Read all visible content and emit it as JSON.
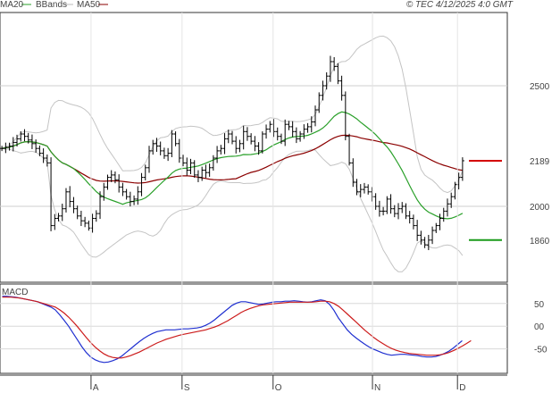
{
  "header": {
    "legend": [
      {
        "label": "MA20",
        "color": "#2aa02a"
      },
      {
        "label": "BBands",
        "color": "#bbbbbb"
      },
      {
        "label": "MA50",
        "color": "#8b0000"
      }
    ],
    "copyright": "© TEC 4/12/2025 4:0 GMT"
  },
  "chart_data": [
    {
      "type": "ohlc",
      "x_labels": [
        "A",
        "S",
        "O",
        "N",
        "D"
      ],
      "y_ticks": [
        2000,
        2500
      ],
      "ylim": [
        1700,
        2800
      ],
      "grid": true,
      "price_close": [
        2240,
        2245,
        2250,
        2265,
        2280,
        2300,
        2290,
        2275,
        2260,
        2240,
        2220,
        2200,
        2180,
        1920,
        1950,
        1960,
        1990,
        2060,
        2020,
        1990,
        1960,
        1940,
        1930,
        1910,
        1950,
        1970,
        2040,
        2080,
        2120,
        2130,
        2110,
        2080,
        2060,
        2040,
        2020,
        2030,
        2060,
        2120,
        2160,
        2230,
        2260,
        2250,
        2230,
        2210,
        2220,
        2300,
        2260,
        2200,
        2180,
        2150,
        2180,
        2130,
        2120,
        2150,
        2140,
        2160,
        2200,
        2230,
        2240,
        2280,
        2300,
        2270,
        2240,
        2260,
        2310,
        2290,
        2270,
        2250,
        2230,
        2300,
        2320,
        2340,
        2310,
        2290,
        2270,
        2340,
        2330,
        2310,
        2280,
        2300,
        2320,
        2330,
        2350,
        2400,
        2460,
        2500,
        2540,
        2600,
        2580,
        2520,
        2460,
        2290,
        2180,
        2100,
        2060,
        2070,
        2080,
        2060,
        2040,
        2000,
        1980,
        1980,
        2030,
        1990,
        1970,
        1990,
        2000,
        1960,
        1950,
        1920,
        1880,
        1860,
        1840,
        1860,
        1900,
        1920,
        1950,
        1980,
        2010,
        2040,
        2090,
        2120,
        2189
      ],
      "levels": [
        {
          "label": "2189",
          "value": 2189,
          "color": "#d40000"
        },
        {
          "label": "1860",
          "value": 1860,
          "color": "#1a9a1a"
        }
      ]
    },
    {
      "type": "line",
      "title": "MACD",
      "y_ticks": [
        "50",
        "00",
        "-50"
      ],
      "ylim": [
        -100,
        85
      ],
      "series": [
        {
          "color": "#1f2fd0",
          "values": [
            66,
            66,
            65,
            64,
            62,
            60,
            58,
            56,
            54,
            50,
            46,
            42,
            36,
            25,
            13,
            0,
            -15,
            -30,
            -45,
            -58,
            -68,
            -74,
            -78,
            -80,
            -79,
            -76,
            -72,
            -66,
            -58,
            -50,
            -42,
            -34,
            -27,
            -21,
            -16,
            -12,
            -10,
            -8,
            -8,
            -8,
            -7,
            -6,
            -6,
            -5,
            -4,
            -2,
            2,
            7,
            14,
            22,
            30,
            38,
            46,
            51,
            54,
            54,
            52,
            50,
            48,
            49,
            51,
            53,
            54,
            54,
            55,
            55,
            56,
            55,
            54,
            53,
            54,
            56,
            58,
            56,
            48,
            35,
            18,
            5,
            -8,
            -18,
            -26,
            -33,
            -40,
            -46,
            -51,
            -55,
            -59,
            -62,
            -64,
            -63,
            -62,
            -62,
            -63,
            -64,
            -65,
            -67,
            -68,
            -68,
            -67,
            -64,
            -60,
            -55,
            -48,
            -40,
            -32
          ]
        },
        {
          "color": "#cc1b1b",
          "values": [
            64,
            64,
            64,
            63,
            62,
            60,
            58,
            56,
            54,
            51,
            48,
            45,
            42,
            36,
            29,
            20,
            10,
            -1,
            -13,
            -25,
            -36,
            -46,
            -54,
            -61,
            -66,
            -69,
            -70,
            -70,
            -68,
            -65,
            -61,
            -57,
            -52,
            -47,
            -42,
            -37,
            -33,
            -29,
            -26,
            -23,
            -20,
            -18,
            -16,
            -14,
            -12,
            -10,
            -8,
            -5,
            -2,
            2,
            7,
            12,
            18,
            24,
            30,
            35,
            39,
            42,
            45,
            47,
            48,
            49,
            50,
            51,
            52,
            53,
            53,
            53,
            53,
            53,
            53,
            54,
            55,
            55,
            54,
            50,
            44,
            36,
            27,
            18,
            9,
            0,
            -9,
            -17,
            -25,
            -32,
            -38,
            -44,
            -49,
            -53,
            -56,
            -58,
            -60,
            -61,
            -62,
            -63,
            -64,
            -64,
            -64,
            -63,
            -61,
            -58,
            -54,
            -49,
            -44,
            -38,
            -32
          ]
        }
      ]
    }
  ]
}
